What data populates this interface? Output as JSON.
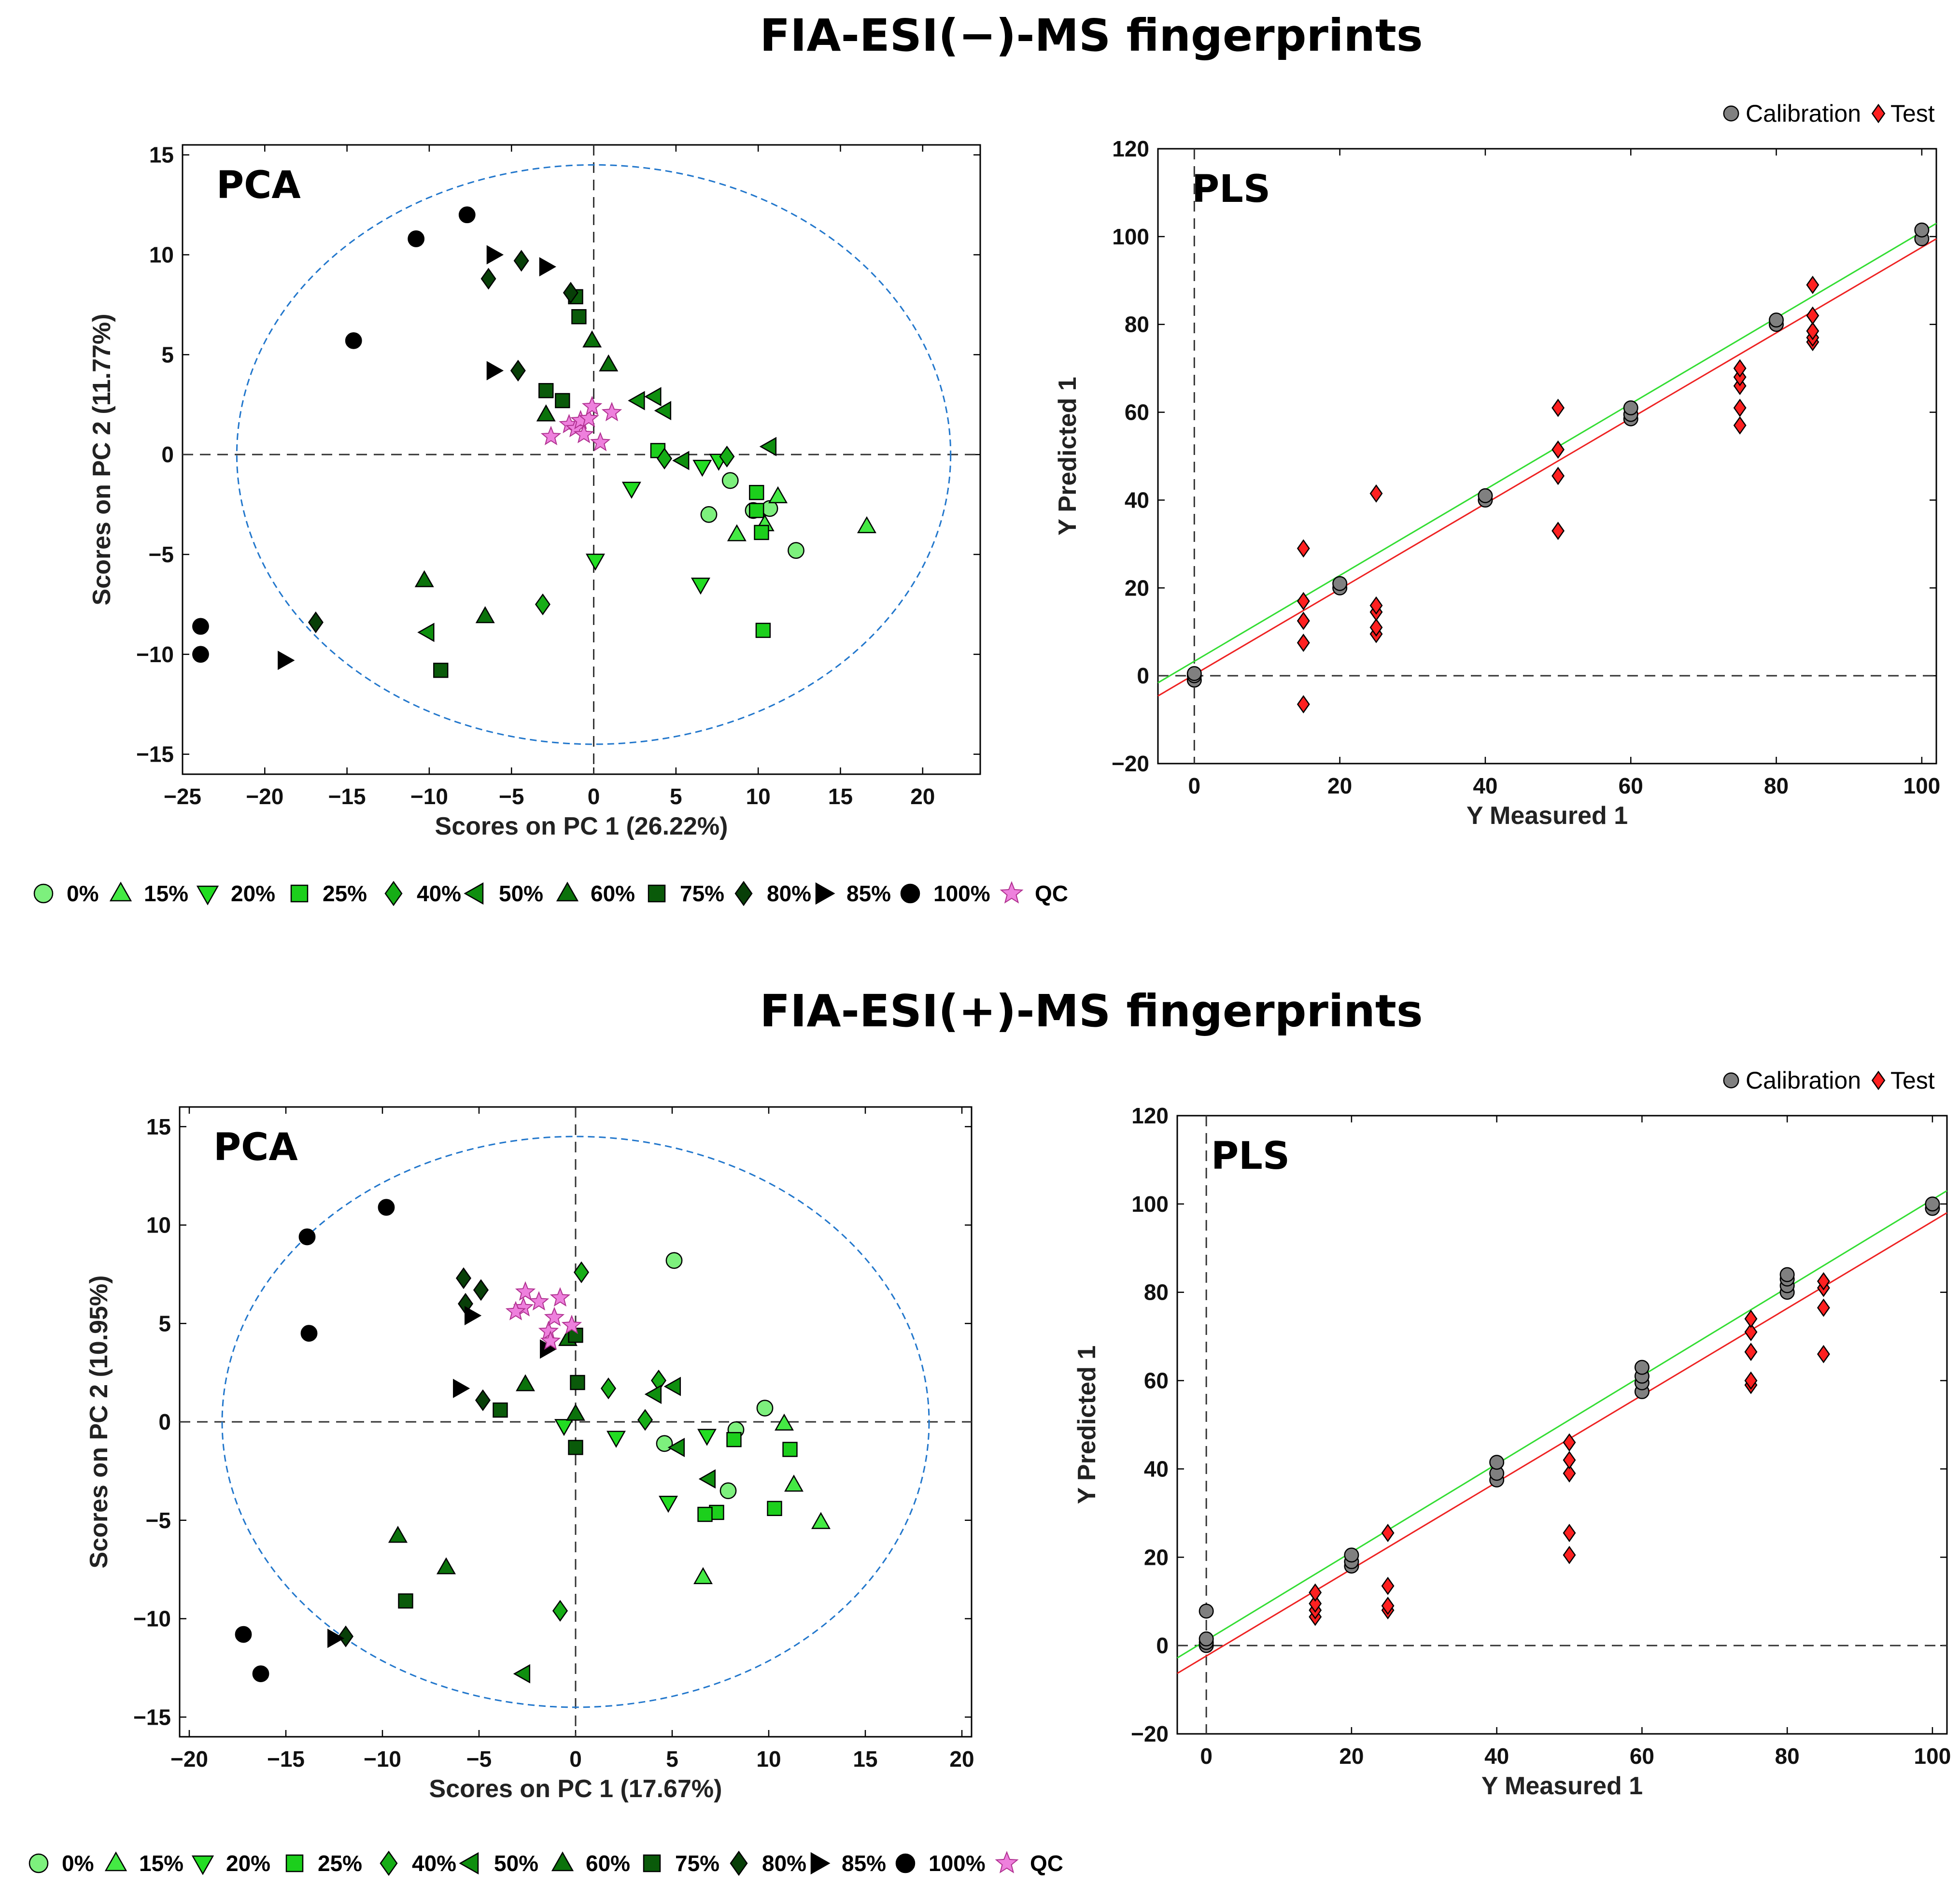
{
  "titles": {
    "neg": "FIA-ESI(−)-MS fingerprints",
    "pos": "FIA-ESI(+)-MS fingerprints"
  },
  "colors": {
    "0%": "#7df07d",
    "15%": "#44ea44",
    "20%": "#22dd22",
    "25%": "#1ccf1c",
    "40%": "#16ad16",
    "50%": "#0f8f0f",
    "60%": "#0b720b",
    "75%": "#0a5a0a",
    "80%": "#083f08",
    "85%": "#000000",
    "100%": "#000000",
    "QC": "#ee80dd",
    "calibration": "#808080",
    "test": "#ff2020",
    "cal_line": "#33dd33",
    "test_line": "#ee2222",
    "ellipse": "#2277cc"
  },
  "legend": {
    "items": [
      {
        "label": "0%",
        "marker": "circle"
      },
      {
        "label": "15%",
        "marker": "triangle-up"
      },
      {
        "label": "20%",
        "marker": "triangle-down"
      },
      {
        "label": "25%",
        "marker": "square"
      },
      {
        "label": "40%",
        "marker": "diamond"
      },
      {
        "label": "50%",
        "marker": "triangle-left"
      },
      {
        "label": "60%",
        "marker": "triangle-up"
      },
      {
        "label": "75%",
        "marker": "square"
      },
      {
        "label": "80%",
        "marker": "diamond"
      },
      {
        "label": "85%",
        "marker": "triangle-right"
      },
      {
        "label": "100%",
        "marker": "circle"
      },
      {
        "label": "QC",
        "marker": "star"
      }
    ],
    "calibration": "Calibration",
    "test": "Test"
  },
  "chart_data": [
    {
      "id": "pca_neg",
      "type": "scatter",
      "title": "PCA",
      "xlabel": "Scores on PC 1 (26.22%)",
      "ylabel": "Scores on PC 2 (11.77%)",
      "xlim": [
        -25,
        23.5
      ],
      "ylim": [
        -16,
        15.5
      ],
      "xticks": [
        -25,
        -20,
        -15,
        -10,
        -5,
        0,
        5,
        10,
        15,
        20
      ],
      "yticks": [
        -15,
        -10,
        -5,
        0,
        5,
        10,
        15
      ],
      "ellipse": {
        "cx": 0,
        "cy": 0,
        "rx": 21.7,
        "ry": 14.5
      },
      "series": [
        {
          "name": "0%",
          "points": [
            [
              7,
              -3
            ],
            [
              8.3,
              -1.3
            ],
            [
              9.7,
              -2.8
            ],
            [
              10.7,
              -2.7
            ],
            [
              12.3,
              -4.8
            ]
          ]
        },
        {
          "name": "15%",
          "points": [
            [
              8.7,
              -4
            ],
            [
              11.2,
              -2.1
            ],
            [
              10.4,
              -3.5
            ],
            [
              16.6,
              -3.6
            ]
          ]
        },
        {
          "name": "20%",
          "points": [
            [
              2.3,
              -1.7
            ],
            [
              0.1,
              -5.3
            ],
            [
              6.5,
              -6.5
            ],
            [
              6.6,
              -0.6
            ],
            [
              7.6,
              -0.3
            ]
          ]
        },
        {
          "name": "25%",
          "points": [
            [
              3.9,
              0.2
            ],
            [
              9.9,
              -1.9
            ],
            [
              9.9,
              -2.8
            ],
            [
              10.2,
              -3.9
            ],
            [
              10.3,
              -8.8
            ]
          ]
        },
        {
          "name": "40%",
          "points": [
            [
              -3.1,
              -7.5
            ],
            [
              4.3,
              -0.2
            ],
            [
              8.1,
              -0.1
            ]
          ]
        },
        {
          "name": "50%",
          "points": [
            [
              -10.1,
              -8.9
            ],
            [
              2.7,
              2.7
            ],
            [
              3.7,
              2.9
            ],
            [
              4.3,
              2.2
            ],
            [
              5.4,
              -0.3
            ],
            [
              10.7,
              0.4
            ]
          ]
        },
        {
          "name": "60%",
          "points": [
            [
              -10.3,
              -6.3
            ],
            [
              -6.6,
              -8.1
            ],
            [
              -2.9,
              2
            ],
            [
              -0.1,
              5.7
            ],
            [
              0.9,
              4.5
            ]
          ]
        },
        {
          "name": "75%",
          "points": [
            [
              -9.3,
              -10.8
            ],
            [
              -2.9,
              3.2
            ],
            [
              -1.9,
              2.7
            ],
            [
              -1.1,
              7.9
            ],
            [
              -0.9,
              6.9
            ]
          ]
        },
        {
          "name": "80%",
          "points": [
            [
              -16.9,
              -8.4
            ],
            [
              -6.4,
              8.8
            ],
            [
              -4.4,
              9.7
            ],
            [
              -4.6,
              4.2
            ],
            [
              -1.4,
              8.1
            ]
          ]
        },
        {
          "name": "85%",
          "points": [
            [
              -18.8,
              -10.3
            ],
            [
              -6.1,
              10
            ],
            [
              -6.1,
              4.2
            ],
            [
              -2.9,
              9.4
            ]
          ]
        },
        {
          "name": "100%",
          "points": [
            [
              -23.9,
              -8.6
            ],
            [
              -23.9,
              -10
            ],
            [
              -14.6,
              5.7
            ],
            [
              -10.8,
              10.8
            ],
            [
              -7.7,
              12
            ]
          ]
        },
        {
          "name": "QC",
          "points": [
            [
              -2.6,
              0.9
            ],
            [
              -1.5,
              1.5
            ],
            [
              -1.1,
              1.3
            ],
            [
              -0.8,
              1.7
            ],
            [
              -0.6,
              1.0
            ],
            [
              -0.3,
              1.8
            ],
            [
              -0.1,
              2.4
            ],
            [
              0.4,
              0.6
            ],
            [
              1.1,
              2.1
            ]
          ]
        }
      ]
    },
    {
      "id": "pls_neg",
      "type": "scatter",
      "title": "PLS",
      "xlabel": "Y Measured 1",
      "ylabel": "Y Predicted 1",
      "xlim": [
        -5,
        102
      ],
      "ylim": [
        -20,
        120
      ],
      "xticks": [
        0,
        20,
        40,
        60,
        80,
        100
      ],
      "yticks": [
        -20,
        0,
        20,
        40,
        60,
        80,
        100,
        120
      ],
      "cal_fit": [
        [
          -5,
          -1.6
        ],
        [
          102,
          103
        ]
      ],
      "test_fit": [
        [
          -5,
          -4.6
        ],
        [
          102,
          99.5
        ]
      ],
      "series": [
        {
          "name": "Calibration",
          "points": [
            [
              0,
              -1
            ],
            [
              0,
              0
            ],
            [
              0,
              0.5
            ],
            [
              20,
              20
            ],
            [
              20,
              21
            ],
            [
              40,
              40
            ],
            [
              40,
              41
            ],
            [
              60,
              58.5
            ],
            [
              60,
              59.5
            ],
            [
              60,
              61
            ],
            [
              80,
              80
            ],
            [
              80,
              81
            ],
            [
              100,
              99.5
            ],
            [
              100,
              101.5
            ]
          ]
        },
        {
          "name": "Test",
          "points": [
            [
              15,
              -6.5
            ],
            [
              15,
              7.5
            ],
            [
              15,
              12.5
            ],
            [
              15,
              17
            ],
            [
              15,
              29
            ],
            [
              25,
              9.5
            ],
            [
              25,
              11
            ],
            [
              25,
              14.5
            ],
            [
              25,
              16
            ],
            [
              25,
              41.5
            ],
            [
              50,
              33
            ],
            [
              50,
              45.5
            ],
            [
              50,
              51.5
            ],
            [
              50,
              61
            ],
            [
              75,
              57
            ],
            [
              75,
              61
            ],
            [
              75,
              66
            ],
            [
              75,
              68
            ],
            [
              75,
              70
            ],
            [
              85,
              76
            ],
            [
              85,
              77
            ],
            [
              85,
              78.5
            ],
            [
              85,
              82
            ],
            [
              85,
              89
            ]
          ]
        }
      ]
    },
    {
      "id": "pca_pos",
      "type": "scatter",
      "title": "PCA",
      "xlabel": "Scores on PC 1 (17.67%)",
      "ylabel": "Scores on PC 2 (10.95%)",
      "xlim": [
        -20.5,
        20.5
      ],
      "ylim": [
        -16,
        16
      ],
      "xticks": [
        -20,
        -15,
        -10,
        -5,
        0,
        5,
        10,
        15,
        20
      ],
      "yticks": [
        -15,
        -10,
        -5,
        0,
        5,
        10,
        15
      ],
      "ellipse": {
        "cx": 0,
        "cy": 0,
        "rx": 18.3,
        "ry": 14.5
      },
      "series": [
        {
          "name": "0%",
          "points": [
            [
              5.1,
              8.2
            ],
            [
              9.8,
              0.7
            ],
            [
              8.3,
              -0.4
            ],
            [
              4.6,
              -1.1
            ],
            [
              7.9,
              -3.5
            ]
          ]
        },
        {
          "name": "15%",
          "points": [
            [
              10.8,
              -0.1
            ],
            [
              11.3,
              -3.2
            ],
            [
              12.7,
              -5.1
            ],
            [
              6.6,
              -7.9
            ]
          ]
        },
        {
          "name": "20%",
          "points": [
            [
              2.1,
              -0.8
            ],
            [
              4.8,
              -4.1
            ],
            [
              6.8,
              -0.7
            ],
            [
              -0.6,
              -0.2
            ]
          ]
        },
        {
          "name": "25%",
          "points": [
            [
              8.2,
              -0.9
            ],
            [
              7.3,
              -4.6
            ],
            [
              6.7,
              -4.7
            ],
            [
              11.1,
              -1.4
            ],
            [
              10.3,
              -4.4
            ]
          ]
        },
        {
          "name": "40%",
          "points": [
            [
              0.3,
              7.6
            ],
            [
              1.7,
              1.7
            ],
            [
              3.6,
              0.1
            ],
            [
              4.3,
              2.1
            ],
            [
              -0.8,
              -9.6
            ]
          ]
        },
        {
          "name": "50%",
          "points": [
            [
              4.1,
              1.4
            ],
            [
              5.1,
              1.8
            ],
            [
              5.3,
              -1.3
            ],
            [
              6.9,
              -2.9
            ],
            [
              -2.7,
              -12.8
            ]
          ]
        },
        {
          "name": "60%",
          "points": [
            [
              -9.2,
              -5.8
            ],
            [
              -6.7,
              -7.4
            ],
            [
              -2.6,
              1.9
            ],
            [
              -0.4,
              4.2
            ],
            [
              0,
              0.4
            ]
          ]
        },
        {
          "name": "75%",
          "points": [
            [
              -3.9,
              0.6
            ],
            [
              0.1,
              2
            ],
            [
              0,
              -1.3
            ],
            [
              -8.8,
              -9.1
            ],
            [
              0,
              4.4
            ]
          ]
        },
        {
          "name": "80%",
          "points": [
            [
              -5.8,
              7.3
            ],
            [
              -5.7,
              6
            ],
            [
              -4.9,
              6.7
            ],
            [
              -4.8,
              1.1
            ],
            [
              -11.9,
              -10.9
            ]
          ]
        },
        {
          "name": "85%",
          "points": [
            [
              -5.4,
              5.4
            ],
            [
              -6,
              1.7
            ],
            [
              -1.5,
              3.7
            ],
            [
              -12.5,
              -11
            ]
          ]
        },
        {
          "name": "100%",
          "points": [
            [
              -13.9,
              9.4
            ],
            [
              -9.8,
              10.9
            ],
            [
              -13.8,
              4.5
            ],
            [
              -17.2,
              -10.8
            ],
            [
              -16.3,
              -12.8
            ]
          ]
        },
        {
          "name": "QC",
          "points": [
            [
              -2.6,
              6.6
            ],
            [
              -1.9,
              6.1
            ],
            [
              -1.4,
              4.6
            ],
            [
              -1.1,
              5.3
            ],
            [
              -0.8,
              6.3
            ],
            [
              -1.3,
              4.1
            ],
            [
              -0.2,
              4.9
            ],
            [
              -2.7,
              5.8
            ],
            [
              -3.1,
              5.6
            ]
          ]
        }
      ]
    },
    {
      "id": "pls_pos",
      "type": "scatter",
      "title": "PLS",
      "xlabel": "Y Measured 1",
      "ylabel": "Y Predicted 1",
      "xlim": [
        -4,
        102
      ],
      "ylim": [
        -20,
        120
      ],
      "xticks": [
        0,
        20,
        40,
        60,
        80,
        100
      ],
      "yticks": [
        -20,
        0,
        20,
        40,
        60,
        80,
        100,
        120
      ],
      "cal_fit": [
        [
          -4,
          -2.8
        ],
        [
          102,
          103
        ]
      ],
      "test_fit": [
        [
          -4,
          -6.3
        ],
        [
          102,
          98
        ]
      ],
      "series": [
        {
          "name": "Calibration",
          "points": [
            [
              0,
              0
            ],
            [
              0,
              0.7
            ],
            [
              0,
              1.5
            ],
            [
              0,
              7.8
            ],
            [
              20,
              18
            ],
            [
              20,
              19
            ],
            [
              20,
              20.5
            ],
            [
              40,
              37.5
            ],
            [
              40,
              39
            ],
            [
              40,
              41.5
            ],
            [
              60,
              57.5
            ],
            [
              60,
              59.5
            ],
            [
              60,
              61
            ],
            [
              60,
              63
            ],
            [
              80,
              80
            ],
            [
              80,
              81.5
            ],
            [
              80,
              83
            ],
            [
              80,
              84
            ],
            [
              100,
              99
            ],
            [
              100,
              100
            ]
          ]
        },
        {
          "name": "Test",
          "points": [
            [
              15,
              6.5
            ],
            [
              15,
              8
            ],
            [
              15,
              9.5
            ],
            [
              15,
              12
            ],
            [
              25,
              8
            ],
            [
              25,
              9
            ],
            [
              25,
              13.5
            ],
            [
              25,
              25.5
            ],
            [
              50,
              20.5
            ],
            [
              50,
              25.5
            ],
            [
              50,
              39
            ],
            [
              50,
              42
            ],
            [
              50,
              46
            ],
            [
              75,
              59
            ],
            [
              75,
              60
            ],
            [
              75,
              66.5
            ],
            [
              75,
              71
            ],
            [
              75,
              74
            ],
            [
              85,
              66
            ],
            [
              85,
              76.5
            ],
            [
              85,
              81
            ],
            [
              85,
              82.5
            ]
          ]
        }
      ]
    }
  ]
}
